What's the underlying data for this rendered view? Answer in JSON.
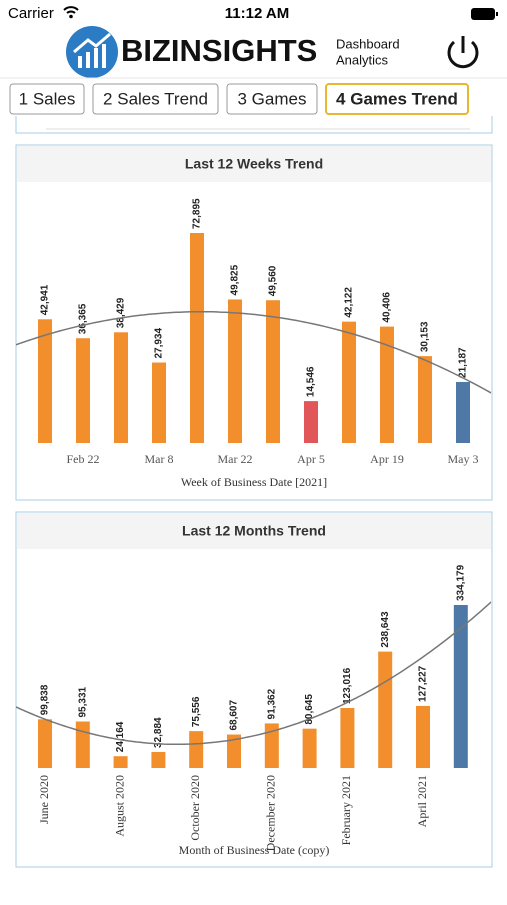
{
  "status_bar": {
    "carrier": "Carrier",
    "time": "11:12 AM"
  },
  "header": {
    "brand": "BIZINSIGHTS",
    "tagline": [
      "Dashboard",
      "Analytics"
    ]
  },
  "tabs": [
    "1 Sales",
    "2 Sales Trend",
    "3 Games",
    "4 Games Trend"
  ],
  "active_tab": 3,
  "chart_data": [
    {
      "type": "bar",
      "title": "Last 12 Weeks Trend",
      "x_label": "Week of Business Date [2021]",
      "categories": [
        null,
        "Feb 22",
        null,
        "Mar 8",
        null,
        "Mar 22",
        null,
        "Apr 5",
        null,
        "Apr 19",
        null,
        "May 3"
      ],
      "values": [
        42941,
        36365,
        38429,
        27934,
        72895,
        49825,
        49560,
        14546,
        42122,
        40406,
        30153,
        21187
      ],
      "value_labels": [
        "42,941",
        "36,365",
        "38,429",
        "27,934",
        "72,895",
        "49,825",
        "49,560",
        "14,546",
        "42,122",
        "40,406",
        "30,153",
        "21,187"
      ],
      "colors": [
        "#f28e2b",
        "#f28e2b",
        "#f28e2b",
        "#f28e2b",
        "#f28e2b",
        "#f28e2b",
        "#f28e2b",
        "#e15759",
        "#f28e2b",
        "#f28e2b",
        "#f28e2b",
        "#4e79a7"
      ],
      "trend_line": true,
      "rotate_x_labels": false
    },
    {
      "type": "bar",
      "title": "Last 12 Months Trend",
      "x_label": "Month of Business Date (copy)",
      "categories": [
        "June 2020",
        null,
        "August 2020",
        null,
        "October 2020",
        null,
        "December 2020",
        null,
        "February 2021",
        null,
        "April 2021",
        null
      ],
      "values": [
        99838,
        95331,
        24164,
        32884,
        75556,
        68607,
        91362,
        80645,
        123016,
        238643,
        127227,
        334179
      ],
      "value_labels": [
        "99,838",
        "95,331",
        "24,164",
        "32,884",
        "75,556",
        "68,607",
        "91,362",
        "80,645",
        "123,016",
        "238,643",
        "127,227",
        "334,179"
      ],
      "colors": [
        "#f28e2b",
        "#f28e2b",
        "#f28e2b",
        "#f28e2b",
        "#f28e2b",
        "#f28e2b",
        "#f28e2b",
        "#f28e2b",
        "#f28e2b",
        "#f28e2b",
        "#f28e2b",
        "#4e79a7"
      ],
      "trend_line": true,
      "rotate_x_labels": true
    }
  ]
}
